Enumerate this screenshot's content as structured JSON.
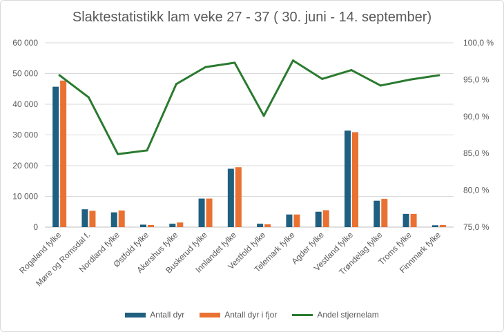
{
  "chart_data": {
    "type": "bar",
    "title": "Slaktestatistikk lam veke 27 - 37 ( 30. juni - 14. september)",
    "categories": [
      "Rogaland fylke",
      "Møre og Romsdal f.",
      "Nordland fylke",
      "Østfold fylke",
      "Akershus fylke",
      "Buskerud fylke",
      "Innlandet fylke",
      "Vestfold fylke",
      "Telemark fylke",
      "Agder fylke",
      "Vestland fylke",
      "Trøndelag fylke",
      "Troms fylke",
      "Finnmark fylke"
    ],
    "series": [
      {
        "name": "Antall dyr",
        "type": "bar",
        "axis": "left",
        "color": "#1f5f7f",
        "values": [
          45700,
          5800,
          4800,
          800,
          1100,
          9300,
          19000,
          1100,
          4100,
          5000,
          31400,
          8600,
          4300,
          600
        ]
      },
      {
        "name": "Antall dyr i fjor",
        "type": "bar",
        "axis": "left",
        "color": "#e97132",
        "values": [
          47700,
          5300,
          5400,
          700,
          1500,
          9300,
          19500,
          900,
          4100,
          5500,
          30900,
          9200,
          4300,
          700
        ]
      },
      {
        "name": "Andel stjernelam",
        "type": "line",
        "axis": "right",
        "color": "#2a7a2f",
        "values": [
          95.6,
          92.6,
          84.9,
          85.4,
          94.4,
          96.7,
          97.3,
          90.1,
          97.6,
          95.1,
          96.3,
          94.2,
          95.0,
          95.6
        ]
      }
    ],
    "ylim_left": [
      0,
      60000
    ],
    "yticks_left": [
      "0",
      "10 000",
      "20 000",
      "30 000",
      "40 000",
      "50 000",
      "60 000"
    ],
    "ylim_right": [
      75,
      100
    ],
    "yticks_right": [
      "75,0 %",
      "80,0 %",
      "85,0 %",
      "90,0 %",
      "95,0 %",
      "100,0 %"
    ],
    "grid": true,
    "legend_position": "bottom"
  }
}
